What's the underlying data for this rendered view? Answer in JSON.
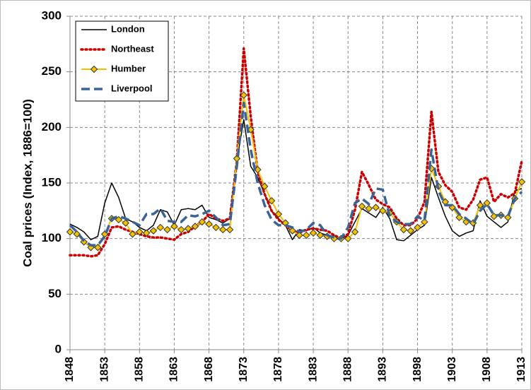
{
  "chart_data": {
    "type": "line",
    "y_label": "Coal prices (Index, 1886=100)",
    "x": [
      1848,
      1849,
      1850,
      1851,
      1852,
      1853,
      1854,
      1855,
      1856,
      1857,
      1858,
      1859,
      1860,
      1861,
      1862,
      1863,
      1864,
      1865,
      1866,
      1867,
      1868,
      1869,
      1870,
      1871,
      1872,
      1873,
      1874,
      1875,
      1876,
      1877,
      1878,
      1879,
      1880,
      1881,
      1882,
      1883,
      1884,
      1885,
      1886,
      1887,
      1888,
      1889,
      1890,
      1891,
      1892,
      1893,
      1894,
      1895,
      1896,
      1897,
      1898,
      1899,
      1900,
      1901,
      1902,
      1903,
      1904,
      1905,
      1906,
      1907,
      1908,
      1909,
      1910,
      1911,
      1912,
      1913
    ],
    "xlim": [
      1848,
      1913
    ],
    "xticks": [
      1848,
      1853,
      1858,
      1863,
      1868,
      1873,
      1878,
      1883,
      1888,
      1893,
      1898,
      1903,
      1908,
      1913
    ],
    "ylim": [
      0,
      300
    ],
    "yticks": [
      0,
      50,
      100,
      150,
      200,
      250,
      300
    ],
    "grid": true,
    "legend": "top-left",
    "series": [
      {
        "name": "London",
        "color": "#000000",
        "style": "solid",
        "values": [
          113,
          110,
          106,
          99,
          102,
          132,
          150,
          137,
          118,
          115,
          110,
          107,
          112,
          126,
          124,
          112,
          126,
          127,
          126,
          130,
          119,
          117,
          114,
          118,
          170,
          207,
          165,
          155,
          140,
          125,
          118,
          112,
          99,
          108,
          107,
          110,
          105,
          103,
          100,
          99,
          103,
          115,
          127,
          123,
          119,
          128,
          118,
          99,
          98,
          103,
          108,
          112,
          155,
          137,
          120,
          107,
          102,
          105,
          107,
          134,
          120,
          115,
          110,
          115,
          143,
          145
        ]
      },
      {
        "name": "Northeast",
        "color": "#cc0000",
        "style": "dotted",
        "values": [
          85,
          85,
          85,
          84,
          85,
          95,
          110,
          111,
          108,
          106,
          104,
          102,
          101,
          101,
          100,
          99,
          104,
          106,
          111,
          115,
          122,
          118,
          116,
          118,
          170,
          271,
          210,
          160,
          140,
          125,
          117,
          112,
          107,
          105,
          108,
          109,
          108,
          107,
          103,
          100,
          104,
          126,
          160,
          148,
          135,
          131,
          128,
          118,
          112,
          112,
          118,
          133,
          214,
          160,
          148,
          142,
          128,
          126,
          135,
          153,
          155,
          133,
          140,
          137,
          141,
          170
        ]
      },
      {
        "name": "Humber",
        "color": "#f2c200",
        "style": "solid",
        "marker": "diamond",
        "values": [
          106,
          104,
          97,
          92,
          92,
          104,
          118,
          117,
          114,
          104,
          106,
          105,
          107,
          110,
          108,
          111,
          108,
          109,
          111,
          115,
          113,
          110,
          108,
          108,
          172,
          229,
          198,
          162,
          147,
          134,
          122,
          114,
          107,
          103,
          103,
          105,
          103,
          102,
          100,
          100,
          100,
          106,
          129,
          127,
          128,
          125,
          123,
          115,
          108,
          107,
          110,
          115,
          163,
          147,
          133,
          128,
          119,
          115,
          114,
          130,
          132,
          120,
          121,
          119,
          136,
          151
        ]
      },
      {
        "name": "Liverpool",
        "color": "#3a6396",
        "style": "dashed",
        "values": [
          112,
          106,
          98,
          94,
          94,
          102,
          118,
          120,
          118,
          115,
          112,
          122,
          122,
          127,
          116,
          115,
          115,
          121,
          120,
          122,
          125,
          119,
          112,
          113,
          165,
          222,
          180,
          150,
          130,
          117,
          112,
          112,
          110,
          106,
          108,
          114,
          112,
          103,
          101,
          100,
          110,
          132,
          136,
          131,
          145,
          144,
          120,
          115,
          113,
          113,
          120,
          116,
          180,
          143,
          130,
          130,
          122,
          118,
          113,
          125,
          131,
          121,
          121,
          120,
          136,
          142
        ]
      }
    ]
  }
}
